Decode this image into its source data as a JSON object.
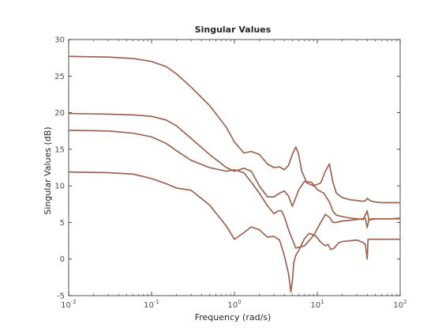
{
  "chart_data": {
    "type": "line",
    "title": "Singular Values",
    "xlabel": "Frequency (rad/s)",
    "ylabel": "Singular Values (dB)",
    "xscale": "log",
    "xlim": [
      0.01,
      100
    ],
    "ylim": [
      -5,
      30
    ],
    "grid": false,
    "legend": "none",
    "x_ticks": [
      {
        "base": "10",
        "exp": "-2"
      },
      {
        "base": "10",
        "exp": "-1"
      },
      {
        "base": "10",
        "exp": "0"
      },
      {
        "base": "10",
        "exp": "1"
      },
      {
        "base": "10",
        "exp": "2"
      }
    ],
    "y_ticks": [
      "-5",
      "0",
      "5",
      "10",
      "15",
      "20",
      "25",
      "30"
    ],
    "line_colors": [
      "#d95319",
      "#0072bd"
    ],
    "series": [
      {
        "x": [
          0.01,
          0.03,
          0.06,
          0.1,
          0.15,
          0.2,
          0.3,
          0.5,
          0.8,
          1.0,
          1.3,
          1.6,
          2.0,
          2.5,
          3.0,
          3.5,
          4.0,
          4.5,
          5.0,
          5.5,
          5.9,
          6.5,
          7.5,
          9,
          11,
          12.5,
          14,
          15.5,
          17,
          20,
          25,
          30,
          35,
          38,
          40,
          42,
          45,
          50,
          60,
          80,
          100
        ],
        "y": [
          27.7,
          27.6,
          27.4,
          27.0,
          26.3,
          25.3,
          23.5,
          21.0,
          18.0,
          16.0,
          14.5,
          14.7,
          14.3,
          13.0,
          12.5,
          12.6,
          12.2,
          12.8,
          14.3,
          15.3,
          14.5,
          12.0,
          10.4,
          10.0,
          10.4,
          12.0,
          13.0,
          10.4,
          9.0,
          8.4,
          8.1,
          8.0,
          7.9,
          7.95,
          8.3,
          8.1,
          7.9,
          7.8,
          7.7,
          7.7,
          7.7
        ]
      },
      {
        "x": [
          0.01,
          0.03,
          0.06,
          0.1,
          0.15,
          0.2,
          0.3,
          0.5,
          0.8,
          1.0,
          1.3,
          1.6,
          2.0,
          2.5,
          3.0,
          3.5,
          4.0,
          4.5,
          5.0,
          6.0,
          7.0,
          8.5,
          10,
          12,
          14,
          15.5,
          17,
          20,
          25,
          30,
          36,
          40,
          42,
          45,
          50,
          60,
          80,
          100
        ],
        "y": [
          19.9,
          19.8,
          19.7,
          19.5,
          19.0,
          18.2,
          16.5,
          14.3,
          12.5,
          12.0,
          12.4,
          12.0,
          10.0,
          8.5,
          8.5,
          9.0,
          9.3,
          8.6,
          7.2,
          9.5,
          10.6,
          10.5,
          9.5,
          9.0,
          7.8,
          6.5,
          6.0,
          5.8,
          5.6,
          5.5,
          5.4,
          6.6,
          5.3,
          5.5,
          5.5,
          5.5,
          5.5,
          5.6
        ]
      },
      {
        "x": [
          0.01,
          0.03,
          0.06,
          0.1,
          0.15,
          0.2,
          0.3,
          0.5,
          0.8,
          1.0,
          1.3,
          1.6,
          2.0,
          2.5,
          3.0,
          3.4,
          3.7,
          4.0,
          4.5,
          5.5,
          7,
          9,
          11,
          12.5,
          14,
          15.5,
          17,
          20,
          25,
          30,
          35,
          38,
          40,
          42,
          45,
          50,
          60,
          80,
          100
        ],
        "y": [
          17.6,
          17.5,
          17.2,
          16.7,
          15.8,
          14.8,
          13.5,
          12.5,
          12.0,
          12.2,
          11.8,
          10.5,
          9.0,
          7.3,
          6.2,
          6.6,
          6.6,
          5.8,
          4.0,
          1.5,
          1.8,
          3.2,
          5.0,
          6.1,
          5.7,
          5.0,
          5.0,
          5.2,
          5.3,
          5.4,
          5.5,
          5.6,
          4.3,
          5.4,
          5.4,
          5.5,
          5.5,
          5.5,
          5.5
        ]
      },
      {
        "x": [
          0.01,
          0.03,
          0.06,
          0.1,
          0.15,
          0.2,
          0.3,
          0.5,
          0.8,
          1.0,
          1.3,
          1.6,
          2.0,
          2.5,
          3.0,
          3.5,
          4.0,
          4.5,
          4.8,
          5.0,
          5.2,
          5.5,
          6,
          7,
          8,
          9.5,
          11,
          12.5,
          13.5,
          14.5,
          16,
          18,
          20,
          25,
          30,
          35,
          38,
          40,
          41,
          43,
          46,
          50,
          60,
          80,
          100
        ],
        "y": [
          11.9,
          11.8,
          11.6,
          11.0,
          10.3,
          9.7,
          9.4,
          7.4,
          4.5,
          2.7,
          3.6,
          4.4,
          4.0,
          3.0,
          3.1,
          2.6,
          0.5,
          -2.0,
          -4.5,
          -3.0,
          -0.5,
          0.5,
          1.2,
          2.8,
          3.5,
          3.2,
          2.3,
          1.8,
          2.0,
          1.3,
          1.5,
          2.2,
          2.4,
          2.5,
          2.6,
          2.3,
          2.0,
          0.0,
          2.7,
          2.7,
          2.7,
          2.7,
          2.7,
          2.7,
          2.7
        ]
      }
    ]
  }
}
